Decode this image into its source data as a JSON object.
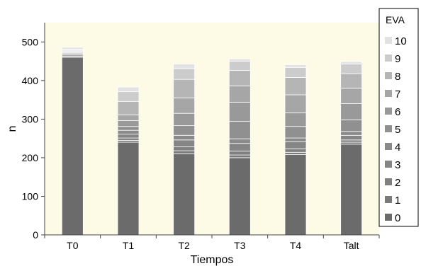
{
  "chart_data": {
    "type": "bar",
    "stacked": true,
    "categories": [
      "T0",
      "T1",
      "T2",
      "T3",
      "T4",
      "Talt"
    ],
    "xlabel": "Tiempos",
    "ylabel": "n",
    "ylim": [
      0,
      550
    ],
    "yticks": [
      0,
      100,
      200,
      300,
      400,
      500
    ],
    "grid": false,
    "legend": {
      "title": "EVA",
      "placement": "right"
    },
    "series": [
      {
        "name": "0",
        "color": "#6b6b6b",
        "values": [
          460,
          240,
          210,
          200,
          208,
          235
        ]
      },
      {
        "name": "1",
        "color": "#7a7a7a",
        "values": [
          3,
          5,
          8,
          7,
          6,
          5
        ]
      },
      {
        "name": "2",
        "color": "#808080",
        "values": [
          3,
          6,
          10,
          10,
          9,
          6
        ]
      },
      {
        "name": "3",
        "color": "#858585",
        "values": [
          3,
          10,
          18,
          20,
          18,
          12
        ]
      },
      {
        "name": "4",
        "color": "#8a8a8a",
        "values": [
          2,
          10,
          12,
          12,
          10,
          10
        ]
      },
      {
        "name": "5",
        "color": "#909090",
        "values": [
          2,
          10,
          25,
          45,
          30,
          30
        ]
      },
      {
        "name": "6",
        "color": "#999999",
        "values": [
          2,
          15,
          32,
          50,
          35,
          42
        ]
      },
      {
        "name": "7",
        "color": "#a6a6a6",
        "values": [
          2,
          15,
          40,
          42,
          47,
          40
        ]
      },
      {
        "name": "8",
        "color": "#b5b5b5",
        "values": [
          2,
          35,
          48,
          40,
          45,
          38
        ]
      },
      {
        "name": "9",
        "color": "#cccccc",
        "values": [
          2,
          25,
          28,
          24,
          26,
          25
        ]
      },
      {
        "name": "10",
        "color": "#e2e2e2",
        "values": [
          5,
          12,
          12,
          6,
          7,
          6
        ]
      }
    ]
  }
}
